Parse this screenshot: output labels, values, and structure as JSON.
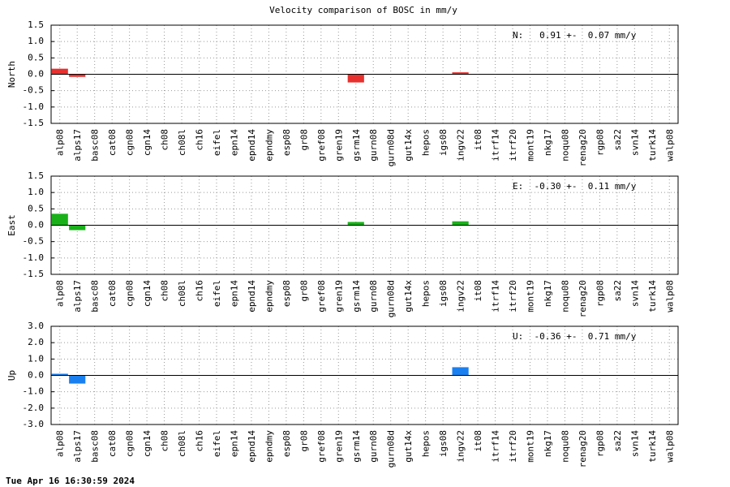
{
  "title": "Velocity comparison of BOSC in mm/y",
  "footer": "Tue Apr 16 16:30:59 2024",
  "chart_data": [
    {
      "type": "bar",
      "ylabel": "North",
      "annotation": "N:   0.91 +-  0.07 mm/y",
      "color": "#e8302e",
      "grid": true,
      "categories": [
        "alp08",
        "alps17",
        "basc08",
        "cat08",
        "cgn08",
        "cgn14",
        "ch08",
        "ch08l",
        "ch16",
        "eifel",
        "epn14",
        "epnd14",
        "epndmy",
        "esp08",
        "gr08",
        "gref08",
        "gren19",
        "gsrm14",
        "gurn08",
        "gurn08d",
        "gut14x",
        "hepos",
        "igs08",
        "ingv22",
        "it08",
        "itrf14",
        "itrf20",
        "mont19",
        "nkg17",
        "noqu08",
        "renag20",
        "rgp08",
        "sa22",
        "svn14",
        "turk14",
        "walp08"
      ],
      "values": [
        0.17,
        -0.08,
        null,
        null,
        null,
        null,
        null,
        null,
        null,
        null,
        null,
        null,
        null,
        null,
        null,
        null,
        null,
        -0.25,
        null,
        null,
        null,
        null,
        null,
        0.06,
        null,
        null,
        null,
        null,
        null,
        null,
        null,
        null,
        null,
        null,
        null,
        null
      ],
      "ylim": [
        -1.5,
        1.5
      ],
      "yticks": [
        1.5,
        {
          "value": 1,
          "label": "1.0"
        },
        0.5,
        {
          "value": 0,
          "label": "0.0"
        },
        -0.5,
        {
          "value": -1,
          "label": "-1.0"
        },
        -1.5
      ]
    },
    {
      "type": "bar",
      "ylabel": "East",
      "annotation": "E:  -0.30 +-  0.11 mm/y",
      "color": "#1ab01a",
      "grid": true,
      "categories": [
        "alp08",
        "alps17",
        "basc08",
        "cat08",
        "cgn08",
        "cgn14",
        "ch08",
        "ch08l",
        "ch16",
        "eifel",
        "epn14",
        "epnd14",
        "epndmy",
        "esp08",
        "gr08",
        "gref08",
        "gren19",
        "gsrm14",
        "gurn08",
        "gurn08d",
        "gut14x",
        "hepos",
        "igs08",
        "ingv22",
        "it08",
        "itrf14",
        "itrf20",
        "mont19",
        "nkg17",
        "noqu08",
        "renag20",
        "rgp08",
        "sa22",
        "svn14",
        "turk14",
        "walp08"
      ],
      "values": [
        0.35,
        -0.15,
        null,
        null,
        null,
        null,
        null,
        null,
        null,
        null,
        null,
        null,
        null,
        null,
        null,
        null,
        null,
        0.1,
        null,
        null,
        null,
        null,
        null,
        0.12,
        null,
        null,
        null,
        null,
        null,
        null,
        null,
        null,
        null,
        null,
        null,
        null
      ],
      "ylim": [
        -1.5,
        1.5
      ],
      "yticks": [
        1.5,
        {
          "value": 1,
          "label": "1.0"
        },
        0.5,
        {
          "value": 0,
          "label": "0.0"
        },
        -0.5,
        {
          "value": -1,
          "label": "-1.0"
        },
        -1.5
      ]
    },
    {
      "type": "bar",
      "ylabel": "Up",
      "annotation": "U:  -0.36 +-  0.71 mm/y",
      "color": "#1a80f0",
      "grid": true,
      "categories": [
        "alp08",
        "alps17",
        "basc08",
        "cat08",
        "cgn08",
        "cgn14",
        "ch08",
        "ch08l",
        "ch16",
        "eifel",
        "epn14",
        "epnd14",
        "epndmy",
        "esp08",
        "gr08",
        "gref08",
        "gren19",
        "gsrm14",
        "gurn08",
        "gurn08d",
        "gut14x",
        "hepos",
        "igs08",
        "ingv22",
        "it08",
        "itrf14",
        "itrf20",
        "mont19",
        "nkg17",
        "noqu08",
        "renag20",
        "rgp08",
        "sa22",
        "svn14",
        "turk14",
        "walp08"
      ],
      "values": [
        0.1,
        -0.5,
        null,
        null,
        null,
        null,
        null,
        null,
        null,
        null,
        null,
        null,
        null,
        null,
        null,
        null,
        null,
        null,
        null,
        null,
        null,
        null,
        null,
        0.5,
        null,
        null,
        null,
        null,
        null,
        null,
        null,
        null,
        null,
        null,
        null,
        null
      ],
      "ylim": [
        -3,
        3
      ],
      "yticks": [
        {
          "value": 3,
          "label": "3.0"
        },
        {
          "value": 2,
          "label": "2.0"
        },
        {
          "value": 1,
          "label": "1.0"
        },
        {
          "value": 0,
          "label": "0.0"
        },
        {
          "value": -1,
          "label": "-1.0"
        },
        {
          "value": -2,
          "label": "-2.0"
        },
        {
          "value": -3,
          "label": "-3.0"
        }
      ]
    }
  ]
}
